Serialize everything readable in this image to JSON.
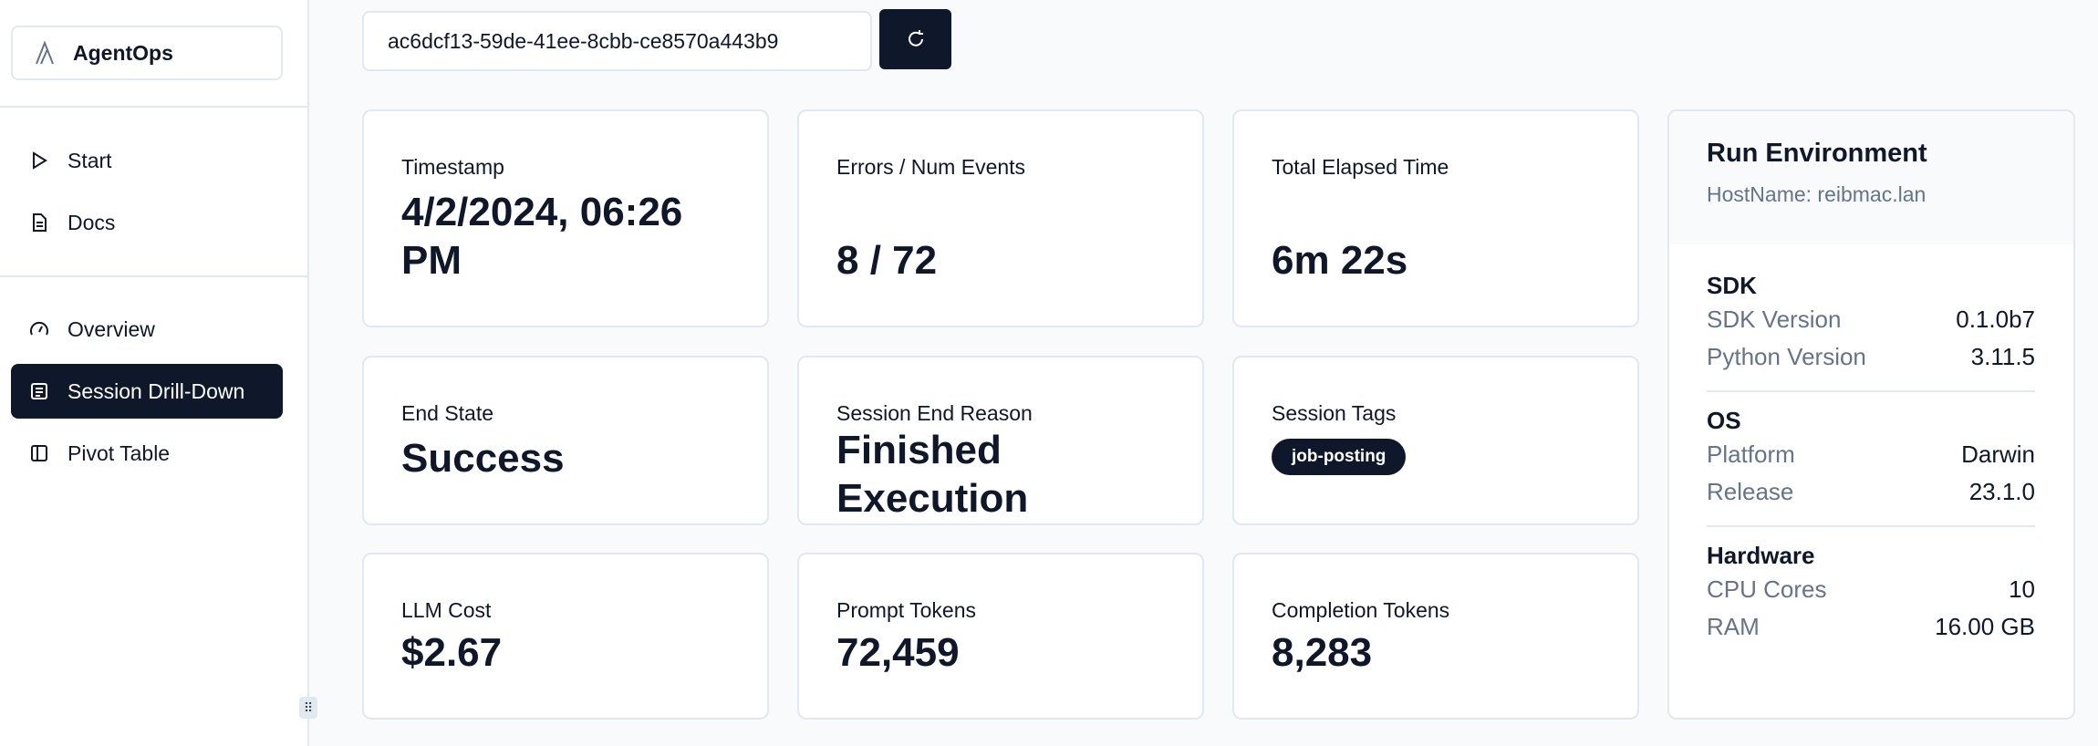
{
  "sidebar": {
    "brand": "AgentOps",
    "items": [
      {
        "label": "Start",
        "icon": "play-icon"
      },
      {
        "label": "Docs",
        "icon": "document-icon"
      },
      {
        "label": "Overview",
        "icon": "gauge-icon"
      },
      {
        "label": "Session Drill-Down",
        "icon": "list-icon",
        "active": true
      },
      {
        "label": "Pivot Table",
        "icon": "panel-icon"
      }
    ]
  },
  "session": {
    "id": "ac6dcf13-59de-41ee-8cbb-ce8570a443b9",
    "refresh_icon": "refresh-icon"
  },
  "cards": [
    {
      "label": "Timestamp",
      "value": "4/2/2024, 06:26 PM"
    },
    {
      "label": "Errors / Num Events",
      "value": "8 / 72"
    },
    {
      "label": "Total Elapsed Time",
      "value": "6m 22s"
    },
    {
      "label": "End State",
      "value": "Success"
    },
    {
      "label": "Session End Reason",
      "value": "Finished Execution"
    },
    {
      "label": "Session Tags",
      "tags": [
        "job-posting"
      ]
    },
    {
      "label": "LLM Cost",
      "value": "$2.67"
    },
    {
      "label": "Prompt Tokens",
      "value": "72,459"
    },
    {
      "label": "Completion Tokens",
      "value": "8,283"
    }
  ],
  "env": {
    "title": "Run Environment",
    "hostname": "HostName: reibmac.lan",
    "sections": [
      {
        "title": "SDK",
        "rows": [
          {
            "k": "SDK Version",
            "v": "0.1.0b7"
          },
          {
            "k": "Python Version",
            "v": "3.11.5"
          }
        ]
      },
      {
        "title": "OS",
        "rows": [
          {
            "k": "Platform",
            "v": "Darwin"
          },
          {
            "k": "Release",
            "v": "23.1.0"
          }
        ]
      },
      {
        "title": "Hardware",
        "rows": [
          {
            "k": "CPU Cores",
            "v": "10"
          },
          {
            "k": "RAM",
            "v": "16.00 GB"
          }
        ]
      }
    ]
  },
  "colors": {
    "primary": "#0f172a",
    "muted": "#64748b",
    "border": "#e2e8f0",
    "background": "#f8fafc"
  }
}
